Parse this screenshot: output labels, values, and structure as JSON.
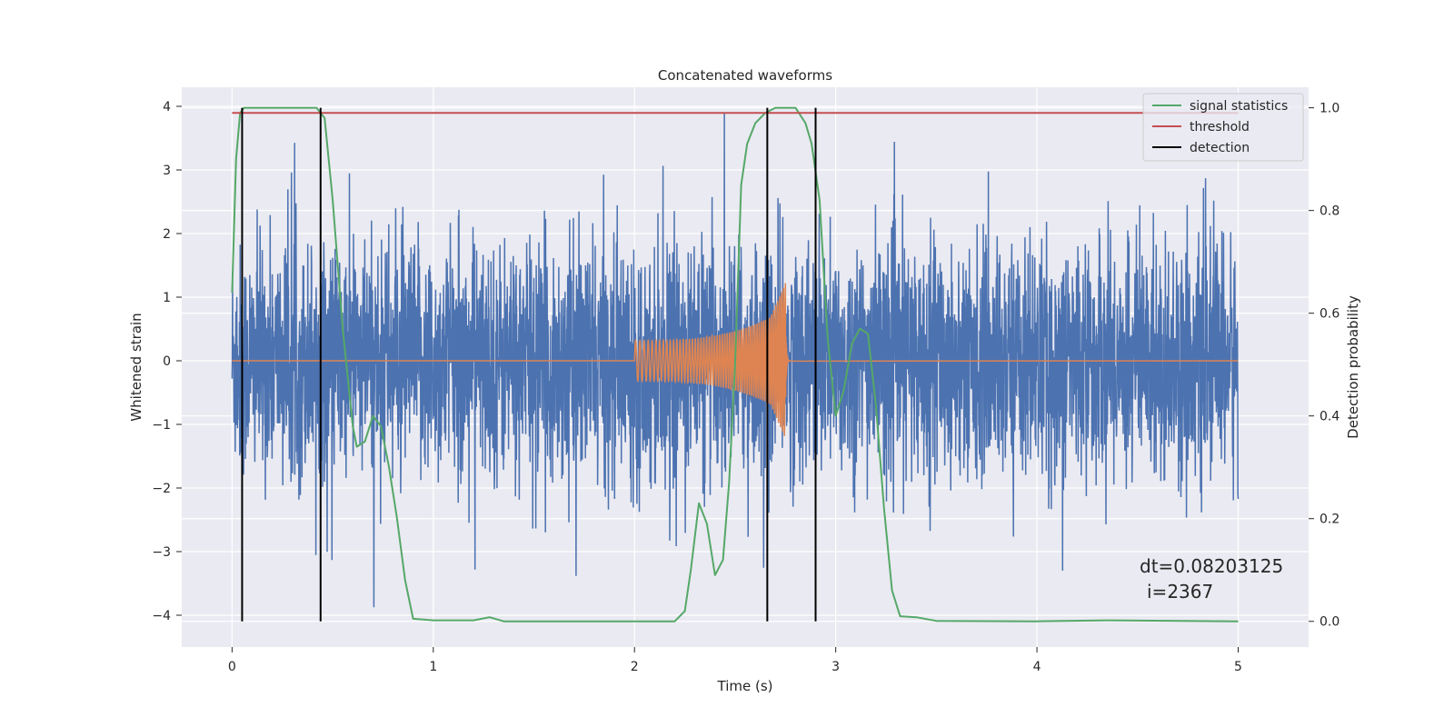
{
  "chart_data": {
    "type": "line",
    "title": "Concatenated waveforms",
    "xlabel": "Time (s)",
    "ylabel": "Whitened strain",
    "ylabel_right": "Detection probability",
    "xlim": [
      -0.25,
      5.35
    ],
    "ylim": [
      -4.5,
      4.3
    ],
    "ylim_right": [
      -0.05,
      1.04
    ],
    "x_ticks": [
      0,
      1,
      2,
      3,
      4,
      5
    ],
    "y_ticks": [
      -4,
      -3,
      -2,
      -1,
      0,
      1,
      2,
      3,
      4
    ],
    "y_ticks_right": [
      0.0,
      0.2,
      0.4,
      0.6,
      0.8,
      1.0
    ],
    "grid": true,
    "legend_position": "top-right",
    "legend": [
      {
        "label": "signal statistics",
        "color": "#55a868"
      },
      {
        "label": "threshold",
        "color": "#c44e52"
      },
      {
        "label": "detection",
        "color": "#000000"
      }
    ],
    "series": [
      {
        "name": "signal statistics",
        "axis": "right",
        "color": "#55a868",
        "x": [
          0.0,
          0.02,
          0.04,
          0.06,
          0.1,
          0.2,
          0.35,
          0.42,
          0.46,
          0.5,
          0.55,
          0.6,
          0.62,
          0.66,
          0.7,
          0.74,
          0.78,
          0.82,
          0.86,
          0.9,
          1.0,
          1.1,
          1.2,
          1.28,
          1.35,
          1.5,
          1.8,
          2.1,
          2.2,
          2.25,
          2.28,
          2.32,
          2.36,
          2.4,
          2.44,
          2.47,
          2.5,
          2.53,
          2.56,
          2.6,
          2.65,
          2.7,
          2.8,
          2.85,
          2.88,
          2.92,
          2.96,
          3.0,
          3.04,
          3.08,
          3.12,
          3.16,
          3.2,
          3.24,
          3.28,
          3.32,
          3.4,
          3.5,
          4.0,
          4.35,
          5.0
        ],
        "y": [
          0.64,
          0.9,
          0.99,
          1.0,
          1.0,
          1.0,
          1.0,
          1.0,
          0.98,
          0.82,
          0.57,
          0.38,
          0.34,
          0.35,
          0.4,
          0.38,
          0.3,
          0.2,
          0.08,
          0.005,
          0.002,
          0.002,
          0.002,
          0.008,
          0.0,
          0.0,
          0.0,
          0.0,
          0.0,
          0.02,
          0.1,
          0.23,
          0.19,
          0.09,
          0.12,
          0.27,
          0.5,
          0.85,
          0.93,
          0.97,
          0.99,
          1.0,
          1.0,
          0.97,
          0.93,
          0.82,
          0.55,
          0.4,
          0.45,
          0.54,
          0.57,
          0.56,
          0.42,
          0.22,
          0.06,
          0.01,
          0.008,
          0.001,
          0.0,
          0.002,
          0.0
        ]
      },
      {
        "name": "threshold",
        "axis": "right",
        "color": "#c44e52",
        "x": [
          0.0,
          5.0
        ],
        "y": [
          0.99,
          0.99
        ]
      }
    ],
    "detections": [
      0.05,
      0.44,
      2.66,
      2.9
    ],
    "detection_color": "#000000",
    "noise": {
      "color": "#4c72b0",
      "x_range": [
        0.0,
        5.0
      ],
      "sigma": 0.9
    },
    "chirp": {
      "color": "#dd8452",
      "x_range": [
        2.0,
        2.75
      ],
      "peak": 1.25
    },
    "annotation_lines": [
      "dt=0.08203125",
      "i=2367"
    ]
  }
}
